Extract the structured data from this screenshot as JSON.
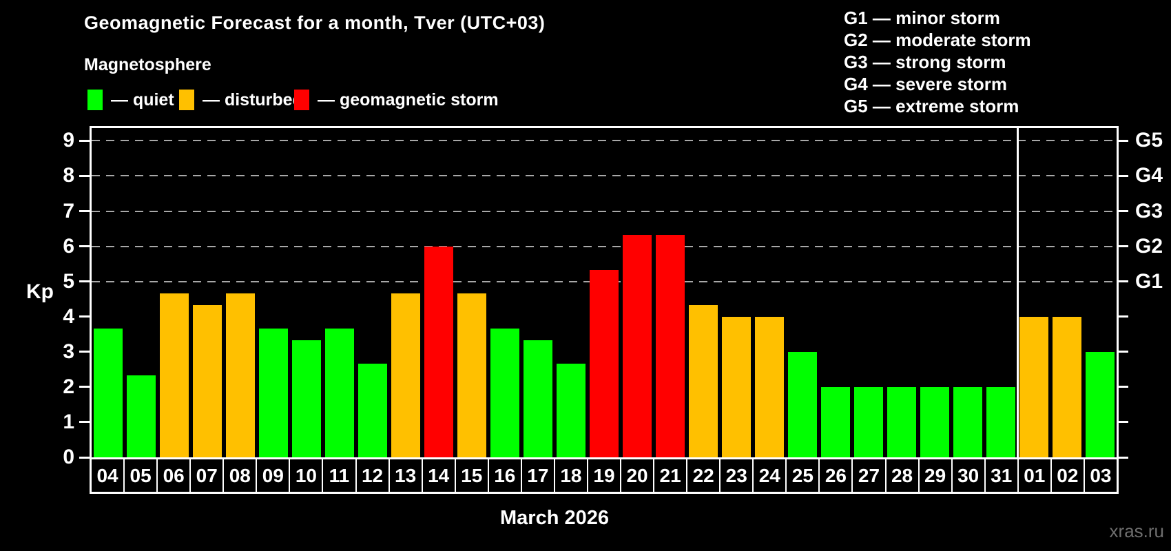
{
  "title": "Geomagnetic Forecast for a month, Tver (UTC+03)",
  "subtitle": "Magnetosphere",
  "legend": {
    "quiet_label": "— quiet",
    "disturbed_label": "— disturbed",
    "storm_label": "— geomagnetic storm"
  },
  "g_legend": [
    "G1 — minor storm",
    "G2 — moderate storm",
    "G3 — strong storm",
    "G4 — severe storm",
    "G5 — extreme storm"
  ],
  "axis": {
    "y_label": "Kp",
    "y_ticks": [
      0,
      1,
      2,
      3,
      4,
      5,
      6,
      7,
      8,
      9
    ],
    "g_labels": {
      "5": "G1",
      "6": "G2",
      "7": "G3",
      "8": "G4",
      "9": "G5"
    }
  },
  "month_label": "March 2026",
  "watermark": "xras.ru",
  "colors": {
    "background": "#000000",
    "text": "#ffffff",
    "quiet": "#00ff00",
    "disturbed": "#ffc000",
    "storm": "#ff0000",
    "grid": "#a8a8a8",
    "watermark": "#6f6f6f"
  },
  "chart_data": {
    "type": "bar",
    "title": "Geomagnetic Forecast for a month, Tver (UTC+03)",
    "xlabel": "March 2026",
    "ylabel": "Kp",
    "ylim": [
      0,
      9.36
    ],
    "grid_levels": [
      5,
      6,
      7,
      8,
      9
    ],
    "separator_before_index": 28,
    "legend_position": "top",
    "days": [
      {
        "day": "04",
        "kp": 3.67,
        "state": "quiet"
      },
      {
        "day": "05",
        "kp": 2.33,
        "state": "quiet"
      },
      {
        "day": "06",
        "kp": 4.67,
        "state": "disturbed"
      },
      {
        "day": "07",
        "kp": 4.33,
        "state": "disturbed"
      },
      {
        "day": "08",
        "kp": 4.67,
        "state": "disturbed"
      },
      {
        "day": "09",
        "kp": 3.67,
        "state": "quiet"
      },
      {
        "day": "10",
        "kp": 3.33,
        "state": "quiet"
      },
      {
        "day": "11",
        "kp": 3.67,
        "state": "quiet"
      },
      {
        "day": "12",
        "kp": 2.67,
        "state": "quiet"
      },
      {
        "day": "13",
        "kp": 4.67,
        "state": "disturbed"
      },
      {
        "day": "14",
        "kp": 6.0,
        "state": "storm"
      },
      {
        "day": "15",
        "kp": 4.67,
        "state": "disturbed"
      },
      {
        "day": "16",
        "kp": 3.67,
        "state": "quiet"
      },
      {
        "day": "17",
        "kp": 3.33,
        "state": "quiet"
      },
      {
        "day": "18",
        "kp": 2.67,
        "state": "quiet"
      },
      {
        "day": "19",
        "kp": 5.33,
        "state": "storm"
      },
      {
        "day": "20",
        "kp": 6.33,
        "state": "storm"
      },
      {
        "day": "21",
        "kp": 6.33,
        "state": "storm"
      },
      {
        "day": "22",
        "kp": 4.33,
        "state": "disturbed"
      },
      {
        "day": "23",
        "kp": 4.0,
        "state": "disturbed"
      },
      {
        "day": "24",
        "kp": 4.0,
        "state": "disturbed"
      },
      {
        "day": "25",
        "kp": 3.0,
        "state": "quiet"
      },
      {
        "day": "26",
        "kp": 2.0,
        "state": "quiet"
      },
      {
        "day": "27",
        "kp": 2.0,
        "state": "quiet"
      },
      {
        "day": "28",
        "kp": 2.0,
        "state": "quiet"
      },
      {
        "day": "29",
        "kp": 2.0,
        "state": "quiet"
      },
      {
        "day": "30",
        "kp": 2.0,
        "state": "quiet"
      },
      {
        "day": "31",
        "kp": 2.0,
        "state": "quiet"
      },
      {
        "day": "01",
        "kp": 4.0,
        "state": "disturbed"
      },
      {
        "day": "02",
        "kp": 4.0,
        "state": "disturbed"
      },
      {
        "day": "03",
        "kp": 3.0,
        "state": "quiet"
      }
    ]
  }
}
